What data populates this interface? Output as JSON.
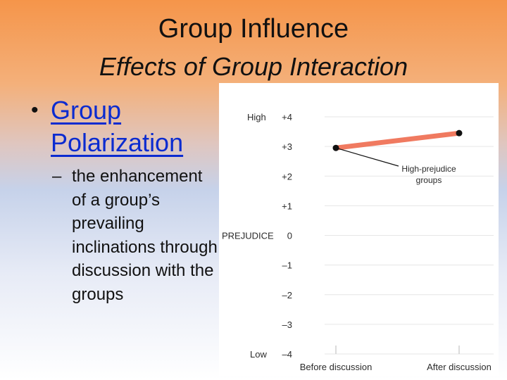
{
  "slide": {
    "title": "Group Influence",
    "subtitle": "Effects of Group Interaction",
    "bullet": "Group Polarization",
    "bullet_marker": "•",
    "sub_marker": "–",
    "sub_bullet": "the enhancement of a group’s prevailing inclinations through discussion with the groups"
  },
  "chart_data": {
    "type": "line",
    "title": "",
    "xlabel": "",
    "ylabel": "PREJUDICE",
    "categories": [
      "Before discussion",
      "After discussion"
    ],
    "yticks": [
      "+4",
      "+3",
      "+2",
      "+1",
      "0",
      "–1",
      "–2",
      "–3",
      "–4"
    ],
    "y_high_label": "High",
    "y_low_label": "Low",
    "ylim": [
      -4,
      4
    ],
    "series": [
      {
        "name": "High-prejudice groups",
        "values": [
          2.95,
          3.45
        ],
        "color": "#f07a60"
      }
    ],
    "annotation": "High-prejudice groups",
    "grid": true,
    "grid_color": "#e6e6e6"
  }
}
